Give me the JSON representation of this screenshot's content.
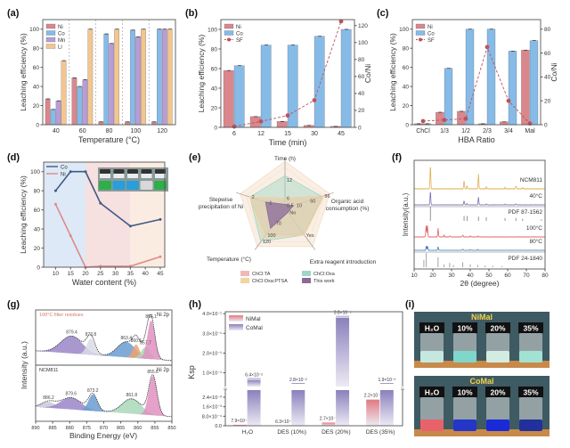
{
  "chart_data": [
    {
      "panel": "(a)",
      "type": "bar",
      "xlabel": "Temperature (°C)",
      "ylabel": "Leaching efficiency (%)",
      "categories": [
        "40",
        "60",
        "80",
        "100",
        "120"
      ],
      "ylim": [
        0,
        110
      ],
      "yticks": [
        "0",
        "20",
        "40",
        "60",
        "80",
        "100"
      ],
      "series": [
        {
          "name": "Ni",
          "color": "#d9868c",
          "values": [
            27,
            49,
            3,
            3,
            3
          ]
        },
        {
          "name": "Co",
          "color": "#86bbe8",
          "values": [
            16,
            40,
            95,
            99,
            100
          ]
        },
        {
          "name": "Mn",
          "color": "#b89cd8",
          "values": [
            25,
            47,
            85,
            92,
            100
          ]
        },
        {
          "name": "Li",
          "color": "#f3c690",
          "values": [
            67,
            100,
            100,
            100,
            100
          ]
        }
      ],
      "group_separators": "dashed"
    },
    {
      "panel": "(b)",
      "type": "bar+line",
      "xlabel": "Time (min)",
      "ylabel": "Leaching efficiency (%)",
      "ylabel_right": "Co/Ni",
      "categories": [
        "6",
        "12",
        "15",
        "30",
        "45"
      ],
      "ylim": [
        0,
        110
      ],
      "yticks": [
        "0",
        "20",
        "40",
        "60",
        "80",
        "100"
      ],
      "ylim_right": [
        0,
        127
      ],
      "yticks_right": [
        "0",
        "20",
        "40",
        "60",
        "80",
        "100",
        "120"
      ],
      "series": [
        {
          "name": "Ni",
          "color": "#d9868c",
          "values": [
            58,
            11,
            6,
            2,
            1
          ]
        },
        {
          "name": "Co",
          "color": "#86bbe8",
          "values": [
            63,
            84,
            84,
            93,
            100
          ]
        }
      ],
      "line": {
        "name": "SF",
        "color": "#c0505a",
        "values": [
          1,
          7,
          14,
          32,
          125
        ]
      }
    },
    {
      "panel": "(c)",
      "type": "bar+line",
      "xlabel": "HBA Ratio",
      "ylabel": "Leaching efficiency (%)",
      "ylabel_right": "Co/Ni",
      "categories": [
        "ChCl",
        "1/3",
        "1/2",
        "2/3",
        "3/4",
        "Mal"
      ],
      "ylim": [
        0,
        110
      ],
      "yticks": [
        "0",
        "20",
        "40",
        "60",
        "80",
        "100"
      ],
      "ylim_right": [
        0,
        88
      ],
      "yticks_right": [
        "0",
        "20",
        "40",
        "60",
        "80"
      ],
      "series": [
        {
          "name": "Ni",
          "color": "#d9868c",
          "values": [
            1,
            13,
            14,
            1,
            3,
            78
          ]
        },
        {
          "name": "Co",
          "color": "#86bbe8",
          "values": [
            1,
            59,
            100,
            100,
            77,
            88
          ]
        }
      ],
      "line": {
        "name": "SF",
        "color": "#c0505a",
        "values": [
          3,
          4,
          5,
          65,
          20,
          1
        ]
      }
    },
    {
      "panel": "(d)",
      "type": "line",
      "xlabel": "Water content (%)",
      "ylabel": "Leaching efficiency (%)",
      "xlim": [
        6,
        46.5
      ],
      "xticks": [
        "10",
        "15",
        "20",
        "25",
        "30",
        "35",
        "40",
        "45"
      ],
      "ylim": [
        0,
        110
      ],
      "yticks": [
        "0",
        "20",
        "40",
        "60",
        "80",
        "100"
      ],
      "x": [
        10,
        15,
        20,
        25,
        35,
        45
      ],
      "series": [
        {
          "name": "Co",
          "color": "#3f5a86",
          "values": [
            80,
            100,
            100,
            67,
            43,
            50
          ]
        },
        {
          "name": "Ni",
          "color": "#e08a8a",
          "values": [
            66,
            33,
            0,
            1,
            1,
            11
          ]
        }
      ],
      "regions": [
        {
          "from": 6,
          "to": 20,
          "color": "#dde9f6"
        },
        {
          "from": 20,
          "to": 35,
          "color": "#f6e0e0"
        },
        {
          "from": 35,
          "to": 46.5,
          "color": "#fbece2"
        }
      ]
    },
    {
      "panel": "(e)",
      "type": "radar",
      "axes": [
        {
          "label": "Time (h)",
          "ticks": [
            {
              "t": "12",
              "level": 0.7
            },
            {
              "t": "6",
              "level": 0.25
            },
            {
              "t": "0.5",
              "level": 0.08
            }
          ]
        },
        {
          "label": "Organic acid consumption (%)",
          "ticks": [
            {
              "t": "96",
              "level": 0.97
            },
            {
              "t": "50",
              "level": 0.6
            },
            {
              "t": "10",
              "level": 0.25
            }
          ]
        },
        {
          "label": "Extra reagent introduction",
          "ticks": [
            {
              "t": "Yes",
              "level": 0.8
            },
            {
              "t": "No",
              "level": 0.12
            }
          ]
        },
        {
          "label": "Temperature (°C)",
          "ticks": [
            {
              "t": "120",
              "level": 1.0
            },
            {
              "t": "100",
              "level": 0.8
            },
            {
              "t": "70",
              "level": 0.45
            }
          ]
        },
        {
          "label": "Stepwise precipitation of Ni",
          "ticks": [
            {
              "t": "2",
              "level": 0.9
            },
            {
              "t": "1",
              "level": 0.45
            }
          ]
        }
      ],
      "series": [
        {
          "name": "ChCl:TA",
          "color": "#f2b8b8",
          "values": [
            0.25,
            1.0,
            0.8,
            0.8,
            0.9
          ]
        },
        {
          "name": "ChCl:Oxa",
          "color": "#9fd6c8",
          "values": [
            0.8,
            0.95,
            0.8,
            1.0,
            0.9
          ]
        },
        {
          "name": "ChCl:Oxa:PTSA",
          "color": "#f3d3a0",
          "values": [
            0.25,
            1.0,
            0.8,
            0.9,
            0.9
          ]
        },
        {
          "name": "This work",
          "color": "#8a6a9a",
          "values": [
            0.1,
            0.2,
            0.12,
            0.6,
            0.5
          ]
        }
      ]
    },
    {
      "panel": "(f)",
      "type": "line",
      "xlabel": "2θ (degree)",
      "ylabel": "Intensity(a.u.)",
      "xlim": [
        10,
        80
      ],
      "xticks": [
        "10",
        "20",
        "30",
        "40",
        "50",
        "60",
        "70",
        "80"
      ],
      "traces": [
        {
          "name": "NCM811",
          "kind": "pattern",
          "color": "#e0b050",
          "peaks": [
            [
              18.7,
              1.0
            ],
            [
              36.7,
              0.35
            ],
            [
              38.3,
              0.12
            ],
            [
              44.4,
              0.6
            ],
            [
              48.6,
              0.08
            ],
            [
              58.6,
              0.06
            ],
            [
              64.4,
              0.12
            ],
            [
              68.0,
              0.05
            ]
          ]
        },
        {
          "name": "40°C",
          "kind": "pattern",
          "color": "#7a70b0",
          "peaks": [
            [
              18.7,
              1.0
            ],
            [
              36.7,
              0.3
            ],
            [
              38.3,
              0.1
            ],
            [
              44.4,
              0.55
            ],
            [
              48.6,
              0.06
            ],
            [
              58.6,
              0.05
            ],
            [
              64.4,
              0.08
            ]
          ]
        },
        {
          "name": "PDF 87-1562",
          "kind": "sticks",
          "color": "#888888",
          "peaks": [
            [
              18.7,
              1.0
            ],
            [
              36.7,
              0.35
            ],
            [
              38.3,
              0.35
            ],
            [
              44.4,
              0.3
            ],
            [
              48.6,
              0.25
            ],
            [
              58.6,
              0.2
            ],
            [
              64.4,
              0.2
            ],
            [
              68.0,
              0.15
            ],
            [
              78.0,
              0.1
            ]
          ]
        },
        {
          "name": "100°C",
          "kind": "pattern",
          "color": "#e06060",
          "peaks": [
            [
              16.4,
              0.7
            ],
            [
              17.1,
              0.8
            ],
            [
              22.8,
              0.55
            ],
            [
              26,
              0.1
            ],
            [
              29,
              0.08
            ],
            [
              36,
              0.12
            ],
            [
              40,
              0.06
            ],
            [
              44,
              0.05
            ]
          ]
        },
        {
          "name": "80°C",
          "kind": "pattern",
          "color": "#3a7ab8",
          "peaks": [
            [
              16.5,
              0.5
            ],
            [
              17.2,
              0.45
            ],
            [
              22.8,
              0.4
            ],
            [
              36,
              0.12
            ],
            [
              40,
              0.08
            ],
            [
              44,
              0.08
            ]
          ]
        },
        {
          "name": "PDF 24-1840",
          "kind": "sticks",
          "color": "#999999",
          "peaks": [
            [
              15.2,
              0.5
            ],
            [
              16.5,
              1.0
            ],
            [
              22.8,
              0.7
            ],
            [
              26,
              0.2
            ],
            [
              29,
              0.3
            ],
            [
              31,
              0.15
            ],
            [
              36,
              0.35
            ],
            [
              40,
              0.2
            ],
            [
              44,
              0.15
            ],
            [
              48,
              0.12
            ],
            [
              52,
              0.1
            ],
            [
              57,
              0.08
            ]
          ]
        }
      ]
    },
    {
      "panel": "(g)",
      "type": "line",
      "xlabel": "Binding Energy (eV)",
      "ylabel": "Intensity (a.u.)",
      "xlim": [
        890,
        850
      ],
      "xticks": [
        "890",
        "885",
        "880",
        "875",
        "870",
        "865",
        "860",
        "855",
        "850"
      ],
      "subplots": [
        {
          "title": "100°C filter residues",
          "label": "Ni 2p",
          "components": [
            {
              "pos": 879.4,
              "h": 0.45,
              "w": 3.2,
              "color": "#9a86c8"
            },
            {
              "pos": 873.8,
              "h": 0.42,
              "w": 1.2,
              "color": "#d8dce6"
            },
            {
              "pos": 863.4,
              "h": 0.4,
              "w": 2.6,
              "color": "#6a9cd0"
            },
            {
              "pos": 860.5,
              "h": 0.35,
              "w": 1.0,
              "color": "#f0a070"
            },
            {
              "pos": 857.7,
              "h": 0.3,
              "w": 1.3,
              "color": "#a8d8b8"
            },
            {
              "pos": 856.1,
              "h": 1.0,
              "w": 1.1,
              "color": "#e090c0"
            }
          ]
        },
        {
          "title": "NCM811",
          "label": "Ni 2p",
          "components": [
            {
              "pos": 886.2,
              "h": 0.15,
              "w": 2.0,
              "color": "#c8c8d8"
            },
            {
              "pos": 879.6,
              "h": 0.3,
              "w": 3.0,
              "color": "#9a86c8"
            },
            {
              "pos": 873.2,
              "h": 0.42,
              "w": 1.3,
              "color": "#6a9cd0"
            },
            {
              "pos": 861.8,
              "h": 0.38,
              "w": 2.8,
              "color": "#a8d8b8"
            },
            {
              "pos": 855.6,
              "h": 1.0,
              "w": 1.2,
              "color": "#e090c0"
            }
          ]
        }
      ]
    },
    {
      "panel": "(h)",
      "type": "bar",
      "ylabel": "Ksp",
      "yaxis_break": true,
      "categories": [
        "H₂O",
        "DES (10%)",
        "DES (20%)",
        "DES (35%)"
      ],
      "ylim_lower": [
        0,
        0.003
      ],
      "yticks_lower": [
        {
          "v": 0,
          "t": "0.0"
        },
        {
          "v": 0.0008,
          "t": "8.0×10⁻⁴"
        },
        {
          "v": 0.0016,
          "t": "1.6×10⁻³"
        },
        {
          "v": 0.0024,
          "t": "2.4×10⁻³"
        }
      ],
      "ylim_upper": [
        0.03,
        0.41
      ],
      "yticks_upper": [
        {
          "v": 0.1,
          "t": "1.0×10⁻¹"
        },
        {
          "v": 0.2,
          "t": "2.0×10⁻¹"
        },
        {
          "v": 0.3,
          "t": "3.0×10⁻¹"
        },
        {
          "v": 0.4,
          "t": "4.0×10⁻¹"
        }
      ],
      "series": [
        {
          "name": "NiMal",
          "color": "#e07a80",
          "values": [
            7.9e-05,
            6.3e-06,
            0.00027,
            0.0022
          ],
          "labels": [
            "7.9×10⁻⁵",
            "6.3×10⁻⁶",
            "2.7×10⁻⁴",
            "2.2×10⁻³"
          ]
        },
        {
          "name": "CoMal",
          "color": "#8a80bc",
          "values": [
            0.064,
            0.028,
            0.38,
            0.019
          ],
          "labels": [
            "6.4×10⁻²",
            "2.8×10⁻²",
            "3.8×10⁻¹",
            "1.9×10⁻²"
          ]
        }
      ]
    }
  ],
  "photo_i": {
    "panel": "(i)",
    "rows": [
      {
        "title": "NiMal",
        "labels": [
          "H₂O",
          "10%",
          "20%",
          "35%"
        ],
        "liquid_colors": [
          "#c4e8df",
          "#7fd6ca",
          "#d2ece2",
          "#a2e2d2"
        ]
      },
      {
        "title": "CoMal",
        "labels": [
          "H₂O",
          "10%",
          "20%",
          "35%"
        ],
        "liquid_colors": [
          "#e8626c",
          "#2436c8",
          "#1a2ad6",
          "#22309c"
        ]
      }
    ]
  },
  "photo_d_inset": {
    "tube_colors": [
      "#2fae4a",
      "#2a9ed8",
      "#2a9ed8",
      "#d8d8d8",
      "#2fae4a"
    ]
  }
}
